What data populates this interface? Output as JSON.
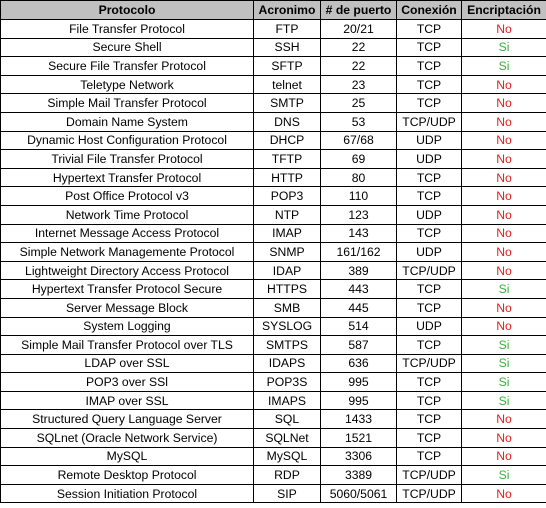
{
  "table": {
    "headers": [
      "Protocolo",
      "Acronimo",
      "# de puerto",
      "Conexión",
      "Encriptación"
    ],
    "rows": [
      [
        "File Transfer Protocol",
        "FTP",
        "20/21",
        "TCP",
        "No"
      ],
      [
        "Secure Shell",
        "SSH",
        "22",
        "TCP",
        "Si"
      ],
      [
        "Secure File Transfer Protocol",
        "SFTP",
        "22",
        "TCP",
        "Si"
      ],
      [
        "Teletype Network",
        "telnet",
        "23",
        "TCP",
        "No"
      ],
      [
        "Simple Mail Transfer Protocol",
        "SMTP",
        "25",
        "TCP",
        "No"
      ],
      [
        "Domain Name System",
        "DNS",
        "53",
        "TCP/UDP",
        "No"
      ],
      [
        "Dynamic Host Configuration Protocol",
        "DHCP",
        "67/68",
        "UDP",
        "No"
      ],
      [
        "Trivial File Transfer Protocol",
        "TFTP",
        "69",
        "UDP",
        "No"
      ],
      [
        "Hypertext Transfer Protocol",
        "HTTP",
        "80",
        "TCP",
        "No"
      ],
      [
        "Post Office Protocol v3",
        "POP3",
        "110",
        "TCP",
        "No"
      ],
      [
        "Network Time Protocol",
        "NTP",
        "123",
        "UDP",
        "No"
      ],
      [
        "Internet Message Access Protocol",
        "IMAP",
        "143",
        "TCP",
        "No"
      ],
      [
        "Simple Network Managemente Protocol",
        "SNMP",
        "161/162",
        "UDP",
        "No"
      ],
      [
        "Lightweight Directory Access Protocol",
        "IDAP",
        "389",
        "TCP/UDP",
        "No"
      ],
      [
        "Hypertext Transfer Protocol Secure",
        "HTTPS",
        "443",
        "TCP",
        "Si"
      ],
      [
        "Server Message Block",
        "SMB",
        "445",
        "TCP",
        "No"
      ],
      [
        "System Logging",
        "SYSLOG",
        "514",
        "UDP",
        "No"
      ],
      [
        "Simple Mail Transfer Protocol over TLS",
        "SMTPS",
        "587",
        "TCP",
        "Si"
      ],
      [
        "LDAP over SSL",
        "IDAPS",
        "636",
        "TCP/UDP",
        "Si"
      ],
      [
        "POP3 over SSl",
        "POP3S",
        "995",
        "TCP",
        "Si"
      ],
      [
        "IMAP over SSL",
        "IMAPS",
        "995",
        "TCP",
        "Si"
      ],
      [
        "Structured Query Language Server",
        "SQL",
        "1433",
        "TCP",
        "No"
      ],
      [
        "SQLnet (Oracle Network Service)",
        "SQLNet",
        "1521",
        "TCP",
        "No"
      ],
      [
        "MySQL",
        "MySQL",
        "3306",
        "TCP",
        "No"
      ],
      [
        "Remote Desktop Protocol",
        "RDP",
        "3389",
        "TCP/UDP",
        "Si"
      ],
      [
        "Session Initiation Protocol",
        "SIP",
        "5060/5061",
        "TCP/UDP",
        "No"
      ]
    ]
  },
  "colors": {
    "header_bg": "#c0c0c0",
    "encrypted_yes": "#3cae3c",
    "encrypted_no": "#e02020"
  }
}
